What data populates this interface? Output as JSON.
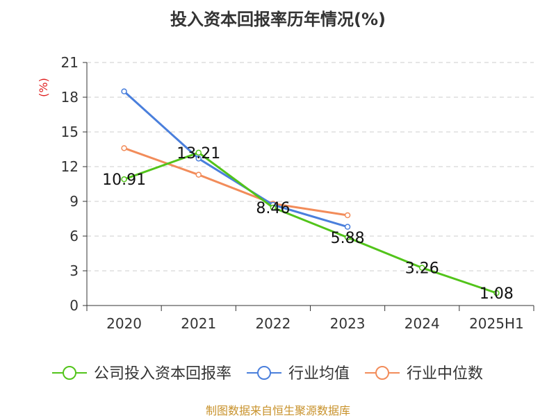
{
  "title": "投入资本回报率历年情况(%)",
  "source": "制图数据来自恒生聚源数据库",
  "chart_data": {
    "type": "line",
    "title": "投入资本回报率历年情况(%)",
    "ylabel": "(%)",
    "xlabel": "",
    "categories": [
      "2020",
      "2021",
      "2022",
      "2023",
      "2024",
      "2025H1"
    ],
    "ylim": [
      0,
      21
    ],
    "yticks": [
      0,
      3,
      6,
      9,
      12,
      15,
      18,
      21
    ],
    "grid": true,
    "legend_position": "bottom",
    "series": [
      {
        "name": "公司投入资本回报率",
        "color": "#52c41a",
        "values": [
          10.91,
          13.21,
          8.46,
          5.88,
          3.26,
          1.08
        ],
        "labels": [
          "10.91",
          "13.21",
          "8.46",
          "5.88",
          "3.26",
          "1.08"
        ]
      },
      {
        "name": "行业均值",
        "color": "#4a7fdc",
        "values": [
          18.5,
          12.7,
          8.7,
          6.8,
          null,
          null
        ]
      },
      {
        "name": "行业中位数",
        "color": "#f28c5a",
        "values": [
          13.6,
          11.3,
          8.8,
          7.8,
          null,
          null
        ]
      }
    ]
  }
}
